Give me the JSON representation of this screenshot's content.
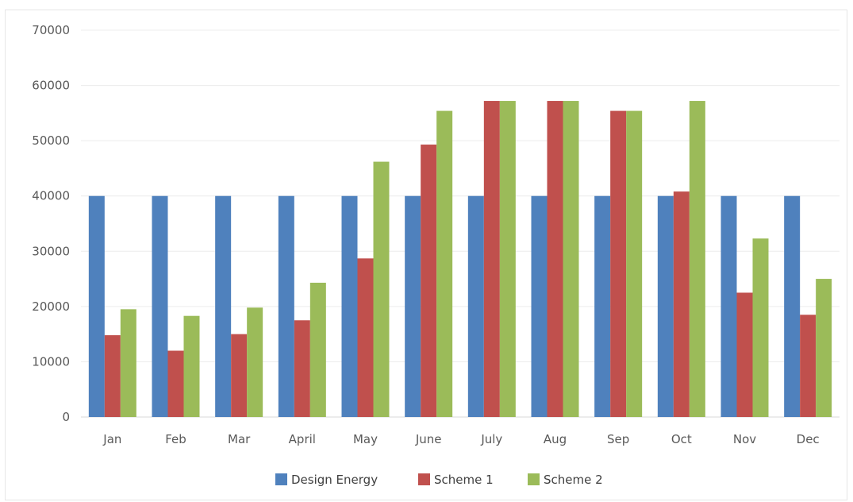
{
  "chart_data": {
    "type": "bar",
    "categories": [
      "Jan",
      "Feb",
      "Mar",
      "April",
      "May",
      "June",
      "July",
      "Aug",
      "Sep",
      "Oct",
      "Nov",
      "Dec"
    ],
    "series": [
      {
        "name": "Design Energy",
        "color": "#4F81BD",
        "values": [
          40000,
          40000,
          40000,
          40000,
          40000,
          40000,
          40000,
          40000,
          40000,
          40000,
          40000,
          40000
        ]
      },
      {
        "name": "Scheme 1",
        "color": "#C0504D",
        "values": [
          14800,
          12000,
          15000,
          17500,
          28700,
          49300,
          57200,
          57200,
          55400,
          40800,
          22500,
          18500
        ]
      },
      {
        "name": "Scheme 2",
        "color": "#9BBB59",
        "values": [
          19500,
          18300,
          19800,
          24300,
          46200,
          55400,
          57200,
          57200,
          55400,
          57200,
          32300,
          25000
        ]
      }
    ],
    "yticks": [
      "0",
      "10000",
      "20000",
      "30000",
      "40000",
      "50000",
      "60000",
      "70000"
    ],
    "ylim": [
      0,
      70000
    ],
    "grid": true,
    "legend_position": "bottom"
  }
}
